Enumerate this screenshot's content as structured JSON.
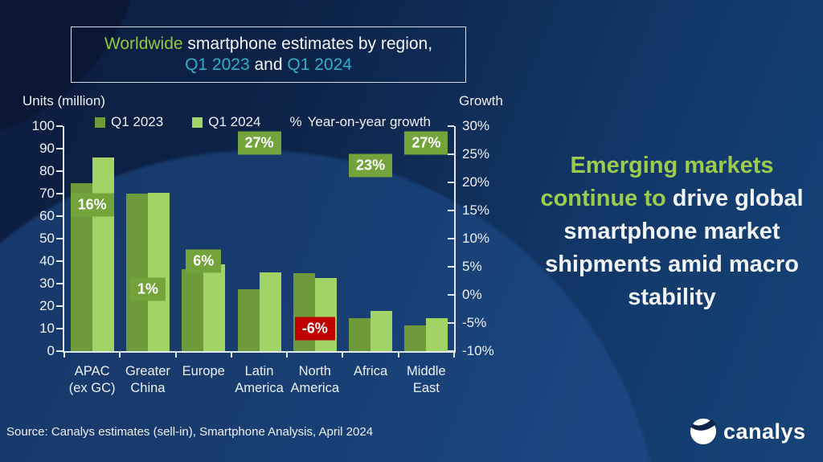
{
  "title": {
    "highlight": "Worldwide",
    "rest": " smartphone estimates by region,",
    "q1": "Q1 2023",
    "and": " and ",
    "q2": "Q1 2024"
  },
  "legend": {
    "pct": "%",
    "growth_label": "Year-on-year growth"
  },
  "headline": {
    "green": "Emerging markets continue to ",
    "white": "drive global smartphone market shipments amid macro stability"
  },
  "source": "Source: Canalys estimates (sell-in), Smartphone Analysis, April 2024",
  "brand": "canalys",
  "colors": {
    "q1_2023_bar": "#6F9A3C",
    "q1_2024_bar": "#A2D465",
    "growth_label_bg": "#74A33C",
    "growth_label_negative_bg": "#C00000",
    "title_green": "#92C83E",
    "title_teal": "#2FB0C6",
    "headline_green": "#9CCB4D"
  },
  "chart_data": {
    "type": "bar",
    "title": "Worldwide smartphone estimates by region, Q1 2023 and Q1 2024",
    "categories": [
      "APAC\n(ex GC)",
      "Greater\nChina",
      "Europe",
      "Latin\nAmerica",
      "North\nAmerica",
      "Africa",
      "Middle\nEast"
    ],
    "series": [
      {
        "name": "Q1 2023",
        "values": [
          74.5,
          70,
          36.5,
          27.5,
          34.5,
          14.5,
          11.5
        ]
      },
      {
        "name": "Q1 2024",
        "values": [
          86,
          70.5,
          38.5,
          35,
          32.5,
          18,
          14.5
        ]
      }
    ],
    "growth_pct": [
      16,
      1,
      6,
      27,
      -6,
      23,
      27
    ],
    "left_axis": {
      "label": "Units (million)",
      "min": 0,
      "max": 100,
      "step": 10
    },
    "right_axis": {
      "label": "Growth",
      "min": -10,
      "max": 30,
      "step": 5,
      "suffix": "%"
    },
    "legend_position": "top",
    "grid": false
  }
}
